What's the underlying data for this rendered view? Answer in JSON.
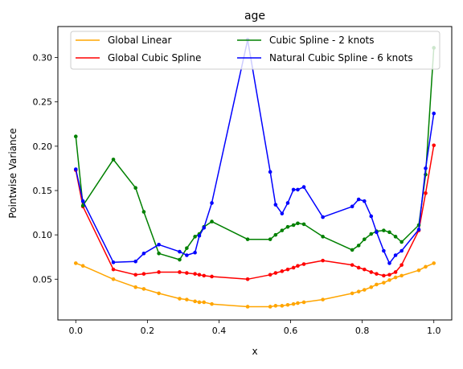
{
  "chart_data": {
    "type": "line",
    "title": "age",
    "xlabel": "x",
    "ylabel": "Pointwise Variance",
    "xlim": [
      -0.05,
      1.05
    ],
    "ylim": [
      0.004,
      0.335
    ],
    "xticks": [
      0.0,
      0.2,
      0.4,
      0.6,
      0.8,
      1.0
    ],
    "xtick_labels": [
      "0.0",
      "0.2",
      "0.4",
      "0.6",
      "0.8",
      "1.0"
    ],
    "yticks": [
      0.05,
      0.1,
      0.15,
      0.2,
      0.25,
      0.3
    ],
    "ytick_labels": [
      "0.05",
      "0.10",
      "0.15",
      "0.20",
      "0.25",
      "0.30"
    ],
    "grid": false,
    "legend": {
      "placement": "top",
      "columns": 2
    },
    "series": [
      {
        "name": "Global Linear",
        "color": "#ffa500",
        "x": [
          0.0,
          0.02,
          0.105,
          0.167,
          0.19,
          0.232,
          0.29,
          0.31,
          0.333,
          0.345,
          0.358,
          0.38,
          0.48,
          0.543,
          0.558,
          0.576,
          0.592,
          0.608,
          0.62,
          0.637,
          0.69,
          0.772,
          0.79,
          0.806,
          0.825,
          0.84,
          0.86,
          0.876,
          0.893,
          0.91,
          0.958,
          0.977,
          1.0
        ],
        "values": [
          0.068,
          0.065,
          0.05,
          0.041,
          0.039,
          0.034,
          0.028,
          0.027,
          0.025,
          0.024,
          0.024,
          0.022,
          0.019,
          0.019,
          0.02,
          0.02,
          0.021,
          0.022,
          0.023,
          0.024,
          0.027,
          0.034,
          0.036,
          0.038,
          0.041,
          0.044,
          0.046,
          0.049,
          0.052,
          0.054,
          0.06,
          0.064,
          0.068
        ]
      },
      {
        "name": "Global Cubic Spline",
        "color": "#ff0000",
        "x": [
          0.0,
          0.02,
          0.105,
          0.167,
          0.19,
          0.232,
          0.29,
          0.31,
          0.333,
          0.345,
          0.358,
          0.38,
          0.48,
          0.543,
          0.558,
          0.576,
          0.592,
          0.608,
          0.62,
          0.637,
          0.69,
          0.772,
          0.79,
          0.806,
          0.825,
          0.84,
          0.86,
          0.876,
          0.893,
          0.91,
          0.958,
          0.977,
          1.0
        ],
        "values": [
          0.173,
          0.132,
          0.061,
          0.055,
          0.056,
          0.058,
          0.058,
          0.057,
          0.056,
          0.055,
          0.054,
          0.053,
          0.05,
          0.055,
          0.057,
          0.059,
          0.061,
          0.063,
          0.065,
          0.067,
          0.071,
          0.066,
          0.063,
          0.061,
          0.058,
          0.056,
          0.054,
          0.055,
          0.058,
          0.066,
          0.105,
          0.147,
          0.201
        ]
      },
      {
        "name": "Cubic Spline - 2 knots",
        "color": "#008000",
        "x": [
          0.0,
          0.02,
          0.105,
          0.167,
          0.19,
          0.232,
          0.29,
          0.31,
          0.333,
          0.345,
          0.358,
          0.38,
          0.48,
          0.543,
          0.558,
          0.576,
          0.592,
          0.608,
          0.62,
          0.637,
          0.69,
          0.772,
          0.79,
          0.806,
          0.825,
          0.84,
          0.86,
          0.876,
          0.893,
          0.91,
          0.958,
          0.977,
          1.0
        ],
        "values": [
          0.211,
          0.133,
          0.185,
          0.153,
          0.126,
          0.079,
          0.072,
          0.085,
          0.098,
          0.101,
          0.109,
          0.115,
          0.095,
          0.095,
          0.1,
          0.105,
          0.109,
          0.111,
          0.113,
          0.112,
          0.098,
          0.083,
          0.088,
          0.095,
          0.101,
          0.104,
          0.105,
          0.103,
          0.098,
          0.092,
          0.111,
          0.168,
          0.311
        ]
      },
      {
        "name": "Natural Cubic Spline - 6 knots",
        "color": "#0000ff",
        "x": [
          0.0,
          0.02,
          0.105,
          0.167,
          0.19,
          0.232,
          0.29,
          0.31,
          0.333,
          0.345,
          0.358,
          0.38,
          0.48,
          0.543,
          0.558,
          0.576,
          0.592,
          0.608,
          0.62,
          0.637,
          0.69,
          0.772,
          0.79,
          0.806,
          0.825,
          0.84,
          0.86,
          0.876,
          0.893,
          0.91,
          0.958,
          0.977,
          1.0
        ],
        "values": [
          0.174,
          0.138,
          0.069,
          0.07,
          0.079,
          0.089,
          0.081,
          0.077,
          0.08,
          0.099,
          0.108,
          0.136,
          0.32,
          0.171,
          0.134,
          0.124,
          0.136,
          0.151,
          0.151,
          0.154,
          0.12,
          0.132,
          0.14,
          0.138,
          0.121,
          0.103,
          0.082,
          0.068,
          0.077,
          0.082,
          0.106,
          0.175,
          0.237
        ]
      }
    ]
  }
}
